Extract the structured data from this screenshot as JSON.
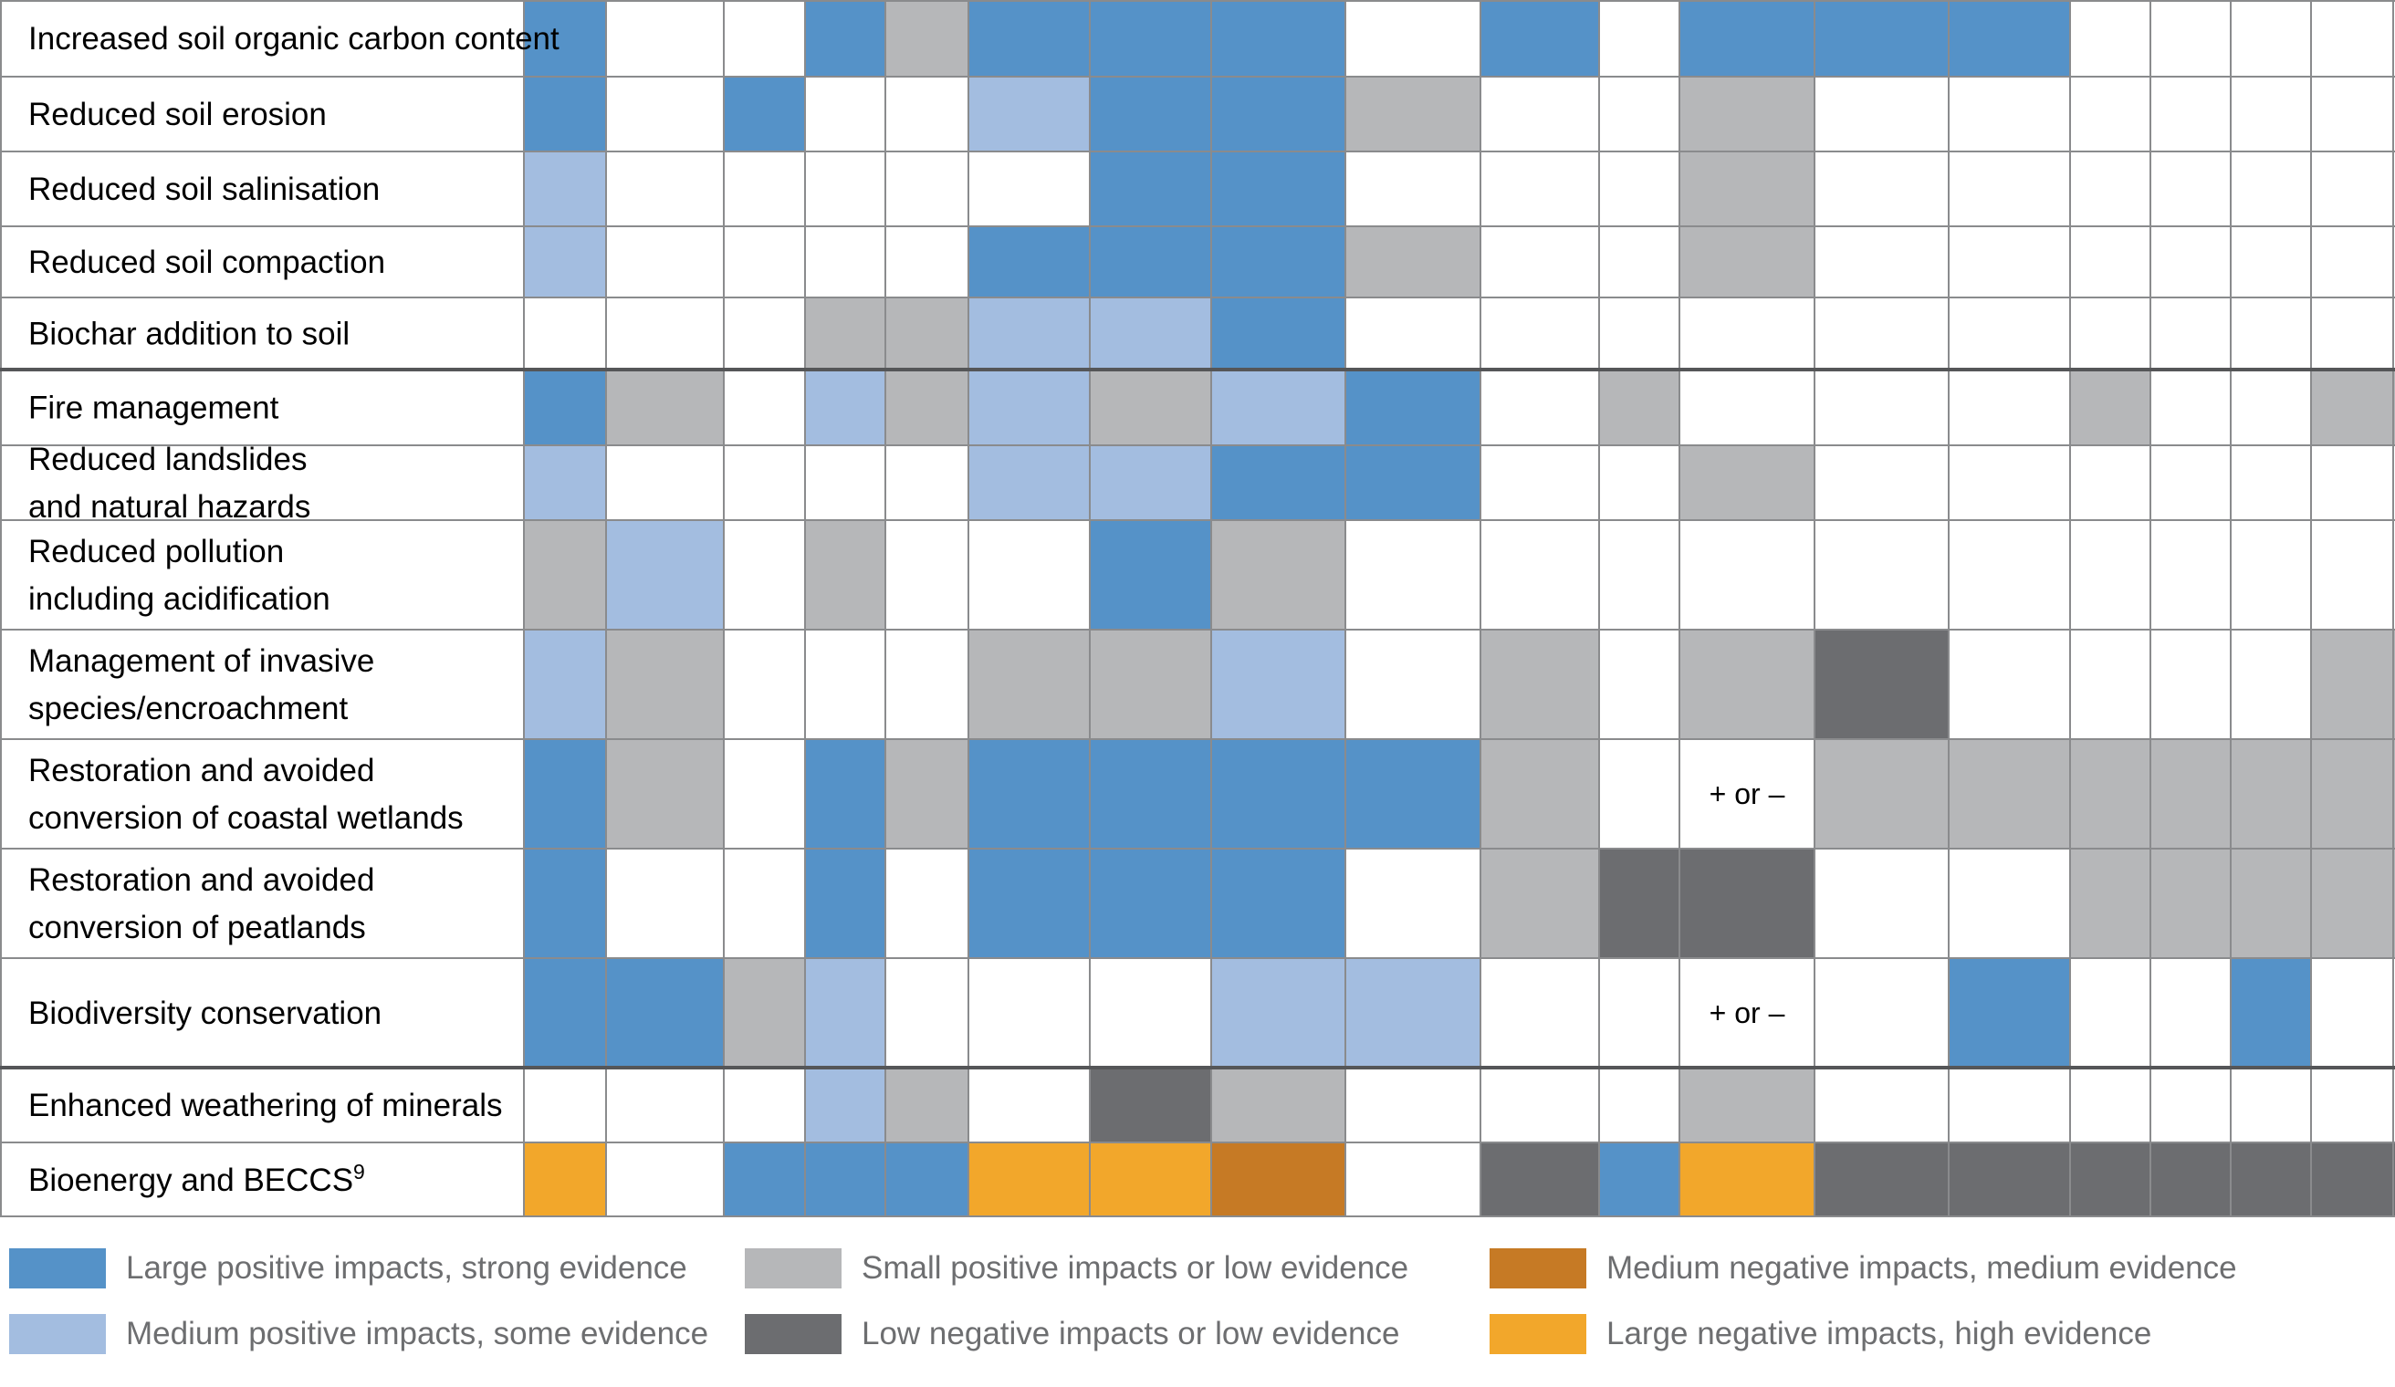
{
  "colors": {
    "L": "#5592c8",
    "M": "#a3bde0",
    "S": "#b6b7b9",
    "N": "#6c6d70",
    "D": "#c67a25",
    "H": "#f2a72b",
    "W": "#ffffff",
    "grid": "#8a8b8d"
  },
  "chart_data": {
    "type": "table",
    "categories": [
      "Large positive impacts, strong evidence",
      "Medium positive impacts, some evidence",
      "Small positive impacts or low evidence",
      "Low negative impacts or low evidence",
      "Medium negative impacts, medium evidence",
      "Large negative impacts, high evidence"
    ],
    "category_codes": [
      "L",
      "M",
      "S",
      "N",
      "D",
      "H"
    ],
    "rows": [
      {
        "label": [
          "Increased soil organic carbon content"
        ],
        "cells": [
          "L",
          "W",
          "W",
          "L",
          "S",
          "L",
          "L",
          "L",
          "W",
          "L",
          "W",
          "L",
          "L",
          "L",
          "W",
          "W",
          "W",
          "W"
        ]
      },
      {
        "label": [
          "Reduced soil erosion"
        ],
        "cells": [
          "L",
          "W",
          "L",
          "W",
          "W",
          "M",
          "L",
          "L",
          "S",
          "W",
          "W",
          "S",
          "W",
          "W",
          "W",
          "W",
          "W",
          "W"
        ]
      },
      {
        "label": [
          "Reduced soil salinisation"
        ],
        "cells": [
          "M",
          "W",
          "W",
          "W",
          "W",
          "W",
          "L",
          "L",
          "W",
          "W",
          "W",
          "S",
          "W",
          "W",
          "W",
          "W",
          "W",
          "W"
        ]
      },
      {
        "label": [
          "Reduced soil compaction"
        ],
        "cells": [
          "M",
          "W",
          "W",
          "W",
          "W",
          "L",
          "L",
          "L",
          "S",
          "W",
          "W",
          "S",
          "W",
          "W",
          "W",
          "W",
          "W",
          "W"
        ]
      },
      {
        "label": [
          "Biochar addition to soil"
        ],
        "cells": [
          "W",
          "W",
          "W",
          "S",
          "S",
          "M",
          "M",
          "L",
          "W",
          "W",
          "W",
          "W",
          "W",
          "W",
          "W",
          "W",
          "W",
          "W"
        ]
      },
      {
        "label": [
          "Fire management"
        ],
        "cells": [
          "L",
          "S",
          "W",
          "M",
          "S",
          "M",
          "S",
          "M",
          "L",
          "W",
          "S",
          "W",
          "W",
          "W",
          "S",
          "W",
          "W",
          "S"
        ]
      },
      {
        "label": [
          "Reduced landslides",
          "and natural hazards"
        ],
        "cells": [
          "M",
          "W",
          "W",
          "W",
          "W",
          "M",
          "M",
          "L",
          "L",
          "W",
          "W",
          "S",
          "W",
          "W",
          "W",
          "W",
          "W",
          "W"
        ]
      },
      {
        "label": [
          "Reduced pollution",
          "including acidification"
        ],
        "cells": [
          "S",
          "M",
          "W",
          "S",
          "W",
          "W",
          "L",
          "S",
          "W",
          "W",
          "W",
          "W",
          "W",
          "W",
          "W",
          "W",
          "W",
          "W"
        ]
      },
      {
        "label": [
          "Management of invasive",
          "species/encroachment"
        ],
        "cells": [
          "M",
          "S",
          "W",
          "W",
          "W",
          "S",
          "S",
          "M",
          "W",
          "S",
          "W",
          "S",
          "N",
          "W",
          "W",
          "W",
          "W",
          "S"
        ]
      },
      {
        "label": [
          "Restoration and avoided",
          "conversion of coastal wetlands"
        ],
        "cells": [
          "L",
          "S",
          "W",
          "L",
          "S",
          "L",
          "L",
          "L",
          "L",
          "S",
          "W",
          "W",
          "S",
          "S",
          "S",
          "S",
          "S",
          "S"
        ],
        "annotations": {
          "11": "+ or –"
        }
      },
      {
        "label": [
          "Restoration and avoided",
          "conversion of peatlands"
        ],
        "cells": [
          "L",
          "W",
          "W",
          "L",
          "W",
          "L",
          "L",
          "L",
          "W",
          "S",
          "N",
          "N",
          "W",
          "W",
          "S",
          "S",
          "S",
          "S"
        ]
      },
      {
        "label": [
          "Biodiversity conservation"
        ],
        "cells": [
          "L",
          "L",
          "S",
          "M",
          "W",
          "W",
          "W",
          "M",
          "M",
          "W",
          "W",
          "W",
          "W",
          "L",
          "W",
          "W",
          "L",
          "W"
        ],
        "annotations": {
          "11": "+ or –"
        }
      },
      {
        "label": [
          "Enhanced weathering of minerals"
        ],
        "cells": [
          "W",
          "W",
          "W",
          "M",
          "S",
          "W",
          "N",
          "S",
          "W",
          "W",
          "W",
          "S",
          "W",
          "W",
          "W",
          "W",
          "W",
          "W"
        ]
      },
      {
        "label": [
          "Bioenergy and BECCS"
        ],
        "label_sup": "9",
        "cells": [
          "H",
          "W",
          "L",
          "L",
          "L",
          "H",
          "H",
          "D",
          "W",
          "N",
          "L",
          "H",
          "N",
          "N",
          "N",
          "N",
          "N",
          "N"
        ]
      }
    ]
  },
  "legend": [
    {
      "code": "L",
      "label": "Large positive impacts, strong evidence"
    },
    {
      "code": "M",
      "label": "Medium positive impacts, some evidence"
    },
    {
      "code": "S",
      "label": "Small positive impacts or low evidence"
    },
    {
      "code": "N",
      "label": "Low negative impacts or low evidence"
    },
    {
      "code": "D",
      "label": "Medium negative impacts, medium evidence"
    },
    {
      "code": "H",
      "label": "Large negative impacts, high evidence"
    }
  ]
}
